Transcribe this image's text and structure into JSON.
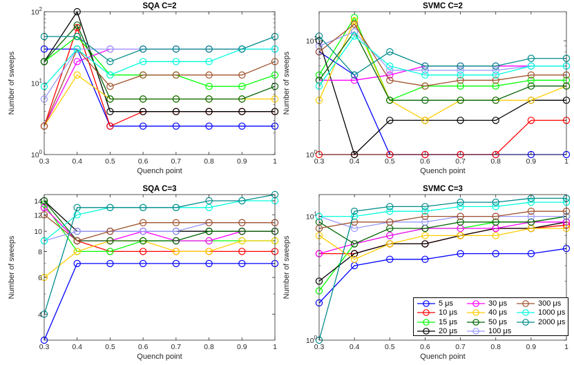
{
  "figure": {
    "xlabel": "Quench point",
    "ylabel": "Number of sweeps",
    "x_ticks": [
      "0.3",
      "0.4",
      "0.5",
      "0.6",
      "0.7",
      "0.8",
      "0.9",
      "1"
    ]
  },
  "legend_labels": [
    "5 μs",
    "10 μs",
    "15 μs",
    "20 μs",
    "30 μs",
    "40 μs",
    "50 μs",
    "100 μs",
    "300 μs",
    "1000 μs",
    "2000 μs"
  ],
  "series_colors": {
    "5 μs": "#0000ff",
    "10 μs": "#ff0000",
    "15 μs": "#00ff00",
    "20 μs": "#000000",
    "30 μs": "#ff00ff",
    "40 μs": "#ffcc00",
    "50 μs": "#006400",
    "100 μs": "#9999ff",
    "300 μs": "#a0522d",
    "1000 μs": "#00ffdd",
    "2000 μs": "#008b8b"
  },
  "chart_data": [
    {
      "type": "line",
      "title": "SQA C=2",
      "xlabel": "Quench point",
      "ylabel": "Number of sweeps",
      "yscale": "log",
      "ylim": [
        1,
        100
      ],
      "ytick_labels": [
        "10^0",
        "10^1",
        "10^2"
      ],
      "x": [
        0.3,
        0.4,
        0.5,
        0.6,
        0.7,
        0.8,
        0.9,
        1.0
      ],
      "series": [
        {
          "name": "5 μs",
          "values": [
            30,
            30,
            2.5,
            2.5,
            2.5,
            2.5,
            2.5,
            2.5
          ]
        },
        {
          "name": "10 μs",
          "values": [
            2.5,
            60,
            2.5,
            4,
            4,
            4,
            4,
            4
          ]
        },
        {
          "name": "15 μs",
          "values": [
            20,
            45,
            13,
            13,
            13,
            9,
            9,
            13
          ]
        },
        {
          "name": "20 μs",
          "values": [
            20,
            100,
            4,
            4,
            4,
            4,
            4,
            4
          ]
        },
        {
          "name": "30 μs",
          "values": [
            2.5,
            20,
            30,
            30,
            30,
            30,
            30,
            30
          ]
        },
        {
          "name": "40 μs",
          "values": [
            2.5,
            13,
            6,
            6,
            6,
            6,
            6,
            6
          ]
        },
        {
          "name": "50 μs",
          "values": [
            20,
            65,
            6,
            6,
            6,
            6,
            6,
            9
          ]
        },
        {
          "name": "100 μs",
          "values": [
            6,
            30,
            30,
            30,
            30,
            30,
            30,
            30
          ]
        },
        {
          "name": "300 μs",
          "values": [
            2.5,
            30,
            9,
            13,
            13,
            13,
            13,
            20
          ]
        },
        {
          "name": "1000 μs",
          "values": [
            9,
            30,
            13,
            20,
            20,
            20,
            30,
            30
          ]
        },
        {
          "name": "2000 μs",
          "values": [
            45,
            45,
            20,
            30,
            30,
            30,
            30,
            45
          ]
        }
      ]
    },
    {
      "type": "line",
      "title": "SVMC C=2",
      "xlabel": "Quench point",
      "ylabel": "Number of sweeps",
      "yscale": "log",
      "ylim": [
        1,
        18
      ],
      "ytick_labels": [
        "10^0",
        "10^1"
      ],
      "x": [
        0.3,
        0.4,
        0.5,
        0.6,
        0.7,
        0.8,
        0.9,
        1.0
      ],
      "series": [
        {
          "name": "5 μs",
          "values": [
            8,
            5,
            1,
            1,
            1,
            1,
            1,
            1
          ]
        },
        {
          "name": "10 μs",
          "values": [
            1,
            1,
            1,
            1,
            1,
            1,
            2,
            2
          ]
        },
        {
          "name": "15 μs",
          "values": [
            5,
            16,
            3,
            4,
            4,
            4,
            4.5,
            4.5
          ]
        },
        {
          "name": "20 μs",
          "values": [
            10,
            1,
            2,
            2,
            2,
            2,
            3,
            3
          ]
        },
        {
          "name": "30 μs",
          "values": [
            4.5,
            4.5,
            5,
            6,
            6,
            6,
            6,
            6
          ]
        },
        {
          "name": "40 μs",
          "values": [
            3,
            15,
            3,
            2,
            3,
            3,
            3,
            4
          ]
        },
        {
          "name": "50 μs",
          "values": [
            4.5,
            12,
            3,
            3,
            3,
            3,
            4,
            4
          ]
        },
        {
          "name": "100 μs",
          "values": [
            9,
            12,
            5.5,
            5.5,
            5.5,
            5.5,
            6,
            6
          ]
        },
        {
          "name": "300 μs",
          "values": [
            8,
            14,
            4.5,
            4,
            4.5,
            4.5,
            5,
            5
          ]
        },
        {
          "name": "1000 μs",
          "values": [
            4,
            11,
            6,
            5,
            5,
            5,
            6,
            6
          ]
        },
        {
          "name": "2000 μs",
          "values": [
            11,
            5,
            8,
            6,
            6,
            6,
            7,
            7
          ]
        }
      ]
    },
    {
      "type": "line",
      "title": "SQA C=3",
      "xlabel": "Quench point",
      "ylabel": "Number of sweeps",
      "yscale": "log",
      "ylim": [
        3,
        15
      ],
      "ytick_labels": [
        "4",
        "6",
        "8",
        "10",
        "12",
        "14"
      ],
      "x": [
        0.3,
        0.4,
        0.5,
        0.6,
        0.7,
        0.8,
        0.9,
        1.0
      ],
      "series": [
        {
          "name": "5 μs",
          "values": [
            3,
            7,
            7,
            7,
            7,
            7,
            7,
            7
          ]
        },
        {
          "name": "10 μs",
          "values": [
            13,
            9,
            8,
            8,
            8,
            8,
            8,
            8
          ]
        },
        {
          "name": "15 μs",
          "values": [
            13.5,
            8,
            8,
            9,
            9,
            9,
            9,
            9
          ]
        },
        {
          "name": "20 μs",
          "values": [
            14,
            10,
            10,
            10,
            10,
            10,
            10,
            10
          ]
        },
        {
          "name": "30 μs",
          "values": [
            13,
            9,
            9,
            10,
            9,
            9,
            10,
            10
          ]
        },
        {
          "name": "40 μs",
          "values": [
            6,
            8,
            9,
            9,
            8,
            8,
            9,
            9
          ]
        },
        {
          "name": "50 μs",
          "values": [
            14,
            9,
            9,
            9,
            9,
            10,
            10,
            10
          ]
        },
        {
          "name": "100 μs",
          "values": [
            9,
            10,
            10,
            10,
            10,
            11,
            11,
            11
          ]
        },
        {
          "name": "300 μs",
          "values": [
            12,
            9,
            10,
            11,
            11,
            11,
            11,
            11
          ]
        },
        {
          "name": "1000 μs",
          "values": [
            9,
            12,
            13,
            13,
            13,
            13,
            14,
            14
          ]
        },
        {
          "name": "2000 μs",
          "values": [
            4,
            13,
            13,
            13,
            13,
            14,
            14,
            15
          ]
        }
      ]
    },
    {
      "type": "line",
      "title": "SVMC C=3",
      "xlabel": "Quench point",
      "ylabel": "Number of sweeps",
      "yscale": "log",
      "ylim": [
        1,
        15
      ],
      "ytick_labels": [
        "10^0",
        "10^1"
      ],
      "x": [
        0.3,
        0.4,
        0.5,
        0.6,
        0.7,
        0.8,
        0.9,
        1.0
      ],
      "series": [
        {
          "name": "5 μs",
          "values": [
            2,
            4,
            4.5,
            4.5,
            5,
            5,
            5,
            5.5
          ]
        },
        {
          "name": "10 μs",
          "values": [
            5,
            5,
            6,
            6,
            7,
            8,
            8,
            8.5
          ]
        },
        {
          "name": "15 μs",
          "values": [
            2.5,
            6,
            7,
            8,
            8,
            9,
            9,
            10
          ]
        },
        {
          "name": "20 μs",
          "values": [
            3,
            5,
            6,
            6,
            7,
            8,
            8,
            9
          ]
        },
        {
          "name": "30 μs",
          "values": [
            5,
            6,
            7,
            8,
            8,
            8,
            9,
            9
          ]
        },
        {
          "name": "40 μs",
          "values": [
            7,
            4.5,
            6,
            7,
            7,
            7,
            8,
            8
          ]
        },
        {
          "name": "50 μs",
          "values": [
            9,
            6,
            8,
            8,
            9,
            9,
            9,
            10
          ]
        },
        {
          "name": "100 μs",
          "values": [
            10,
            8,
            9,
            9,
            10,
            10,
            10,
            10
          ]
        },
        {
          "name": "300 μs",
          "values": [
            8,
            9,
            9,
            10,
            10,
            10,
            11,
            11
          ]
        },
        {
          "name": "1000 μs",
          "values": [
            10,
            10,
            11,
            11,
            12,
            12,
            13,
            13
          ]
        },
        {
          "name": "2000 μs",
          "values": [
            1,
            11,
            12,
            12,
            13,
            13,
            14,
            14
          ]
        }
      ]
    }
  ]
}
